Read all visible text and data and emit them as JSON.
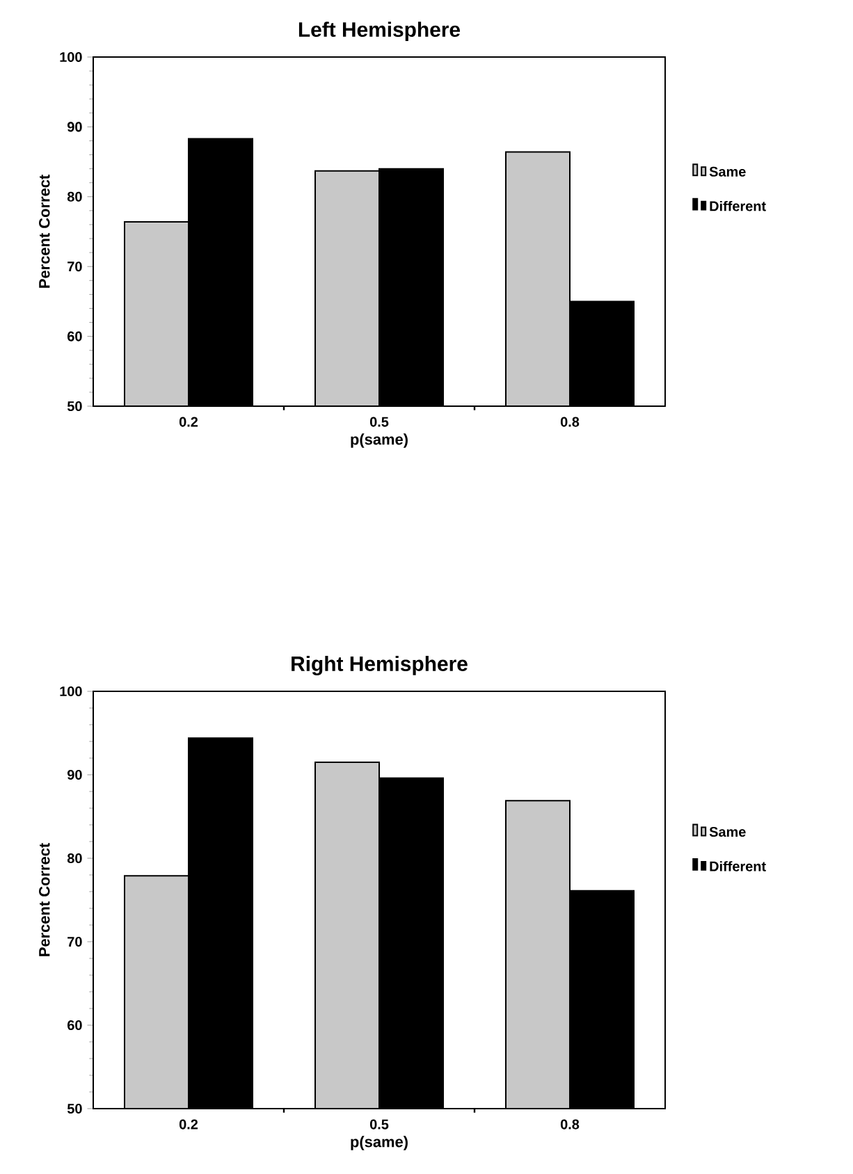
{
  "chart_data": [
    {
      "type": "bar",
      "title": "Left Hemisphere",
      "xlabel": "p(same)",
      "ylabel": "Percent Correct",
      "categories": [
        "0.2",
        "0.5",
        "0.8"
      ],
      "series": [
        {
          "name": "Same",
          "color": "#c8c8c8",
          "values": [
            76.4,
            83.7,
            86.4
          ]
        },
        {
          "name": "Different",
          "color": "#000000",
          "values": [
            88.3,
            84.0,
            65.0
          ]
        }
      ],
      "ylim": [
        50,
        100
      ],
      "yticks": [
        50,
        60,
        70,
        80,
        90,
        100
      ],
      "grid": false,
      "legend": "right"
    },
    {
      "type": "bar",
      "title": "Right Hemisphere",
      "xlabel": "p(same)",
      "ylabel": "Percent Correct",
      "categories": [
        "0.2",
        "0.5",
        "0.8"
      ],
      "series": [
        {
          "name": "Same",
          "color": "#c8c8c8",
          "values": [
            77.9,
            91.5,
            86.9
          ]
        },
        {
          "name": "Different",
          "color": "#000000",
          "values": [
            94.4,
            89.6,
            76.1
          ]
        }
      ],
      "ylim": [
        50,
        100
      ],
      "yticks": [
        50,
        60,
        70,
        80,
        90,
        100
      ],
      "grid": false,
      "legend": "right"
    }
  ]
}
